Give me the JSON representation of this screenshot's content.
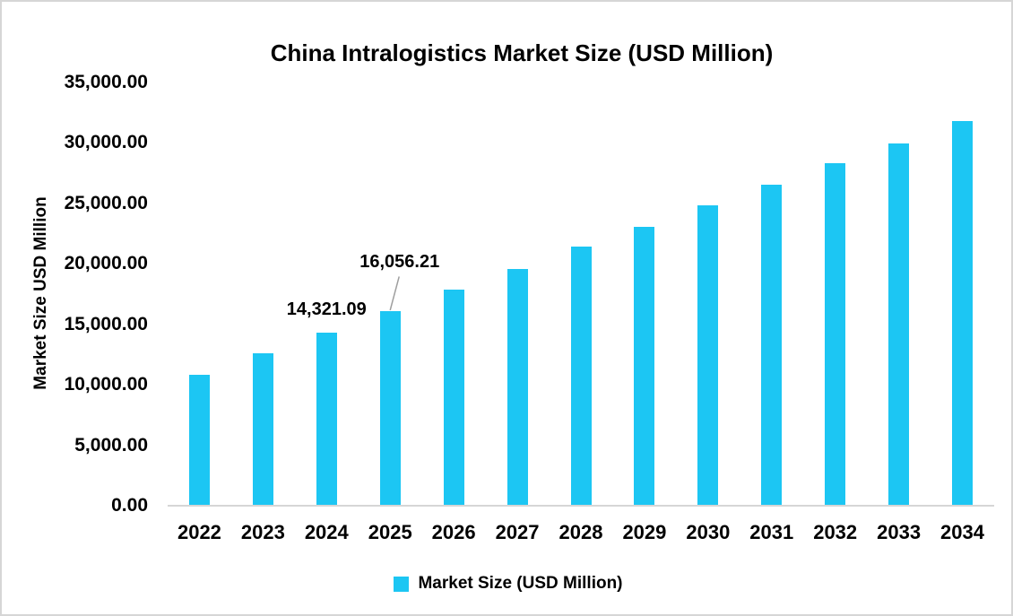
{
  "chart_data": {
    "type": "bar",
    "title": "China Intralogistics Market Size (USD Million)",
    "ylabel": "Market Size USD Million",
    "xlabel": "",
    "categories": [
      "2022",
      "2023",
      "2024",
      "2025",
      "2026",
      "2027",
      "2028",
      "2029",
      "2030",
      "2031",
      "2032",
      "2033",
      "2034"
    ],
    "values": [
      10850,
      12600,
      14321.09,
      16056.21,
      17840,
      19570,
      21420,
      23060,
      24830,
      26510,
      28310,
      29960,
      31810
    ],
    "labeled_points": [
      {
        "category": "2024",
        "value": 14321.09,
        "text": "14,321.09",
        "leader_line": false
      },
      {
        "category": "2025",
        "value": 16056.21,
        "text": "16,056.21",
        "leader_line": true
      }
    ],
    "ylim": [
      0,
      35000
    ],
    "ytick_step": 5000,
    "ytick_labels_top_to_bottom": [
      "35,000.00",
      "30,000.00",
      "25,000.00",
      "20,000.00",
      "15,000.00",
      "10,000.00",
      "5,000.00",
      "0.00"
    ],
    "grid": false,
    "legend": {
      "position": "bottom",
      "label": "Market Size (USD Million)"
    },
    "colors": {
      "bar": "#1cc6f3",
      "axis_line": "#d6d6d6",
      "leader_line": "#9e9e9e",
      "text": "#000000",
      "background": "#ffffff",
      "border": "#d6d6d6"
    }
  }
}
